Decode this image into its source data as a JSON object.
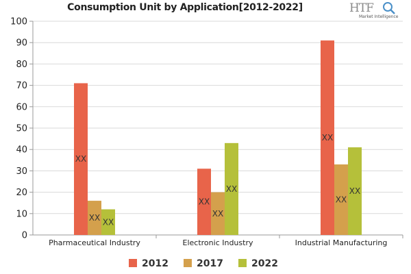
{
  "title": "Consumption Unit by  Application[2012-2022]",
  "logo": {
    "word": "HTF",
    "sub": "Market Intelligence"
  },
  "colors": {
    "2012": "#E8644A",
    "2017": "#D4A04C",
    "2022": "#B5C03A",
    "grid": "#d9d9d9",
    "axis": "#999999"
  },
  "chart_data": {
    "type": "bar",
    "title": "Consumption Unit by  Application[2012-2022]",
    "categories": [
      "Pharmaceutical Industry",
      "Electronic Industry",
      "Industrial Manufacturing"
    ],
    "series": [
      {
        "name": "2012",
        "values": [
          71,
          31,
          91
        ],
        "labels": [
          "XX",
          "XX",
          "XX"
        ]
      },
      {
        "name": "2017",
        "values": [
          16,
          20,
          33
        ],
        "labels": [
          "XX",
          "XX",
          "XX"
        ]
      },
      {
        "name": "2022",
        "values": [
          12,
          43,
          41
        ],
        "labels": [
          "XX",
          "XX",
          "XX"
        ]
      }
    ],
    "ylim": [
      0,
      100
    ],
    "yticks": [
      0,
      10,
      20,
      30,
      40,
      50,
      60,
      70,
      80,
      90,
      100
    ],
    "xlabel": "",
    "ylabel": "",
    "grid": true,
    "legend": "bottom"
  }
}
